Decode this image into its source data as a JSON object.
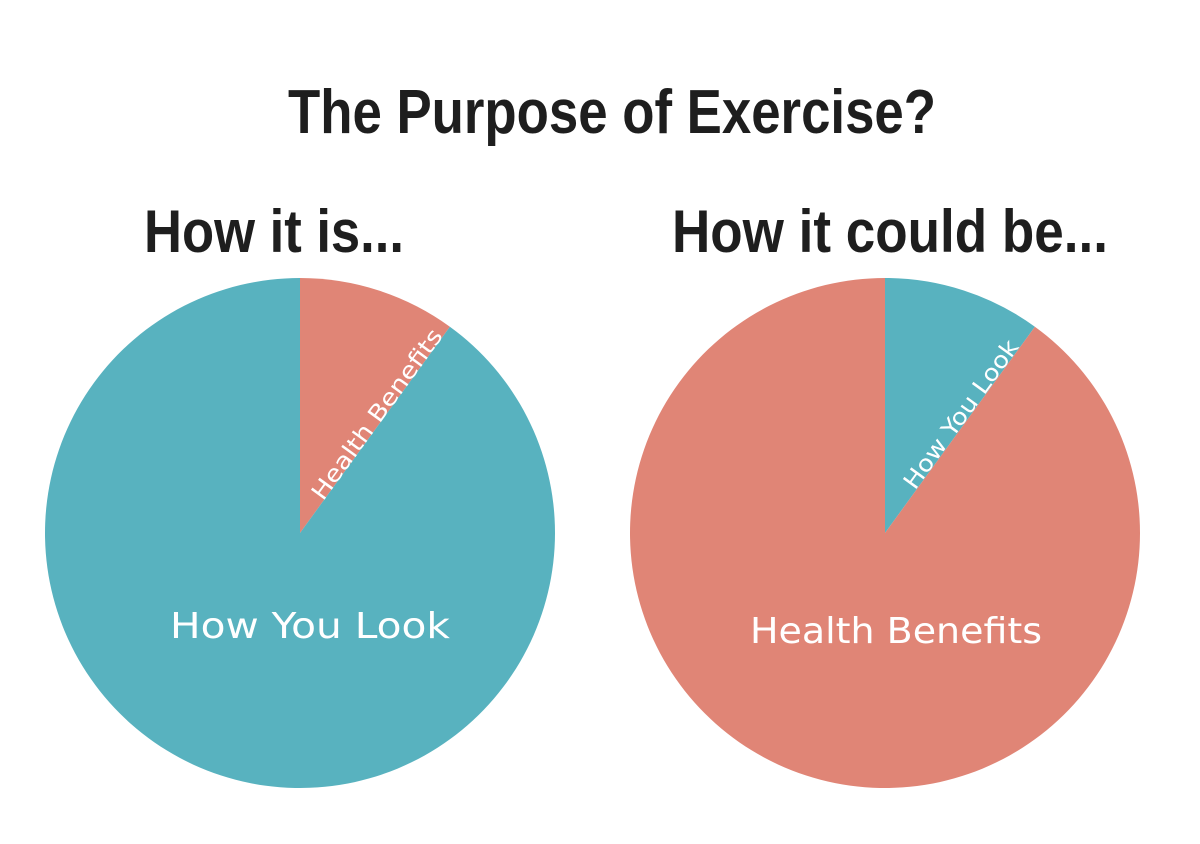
{
  "title": "The Purpose of Exercise?",
  "colors": {
    "how_you_look": "#58b2bf",
    "health_benefits": "#e08576",
    "text": "#1e1e1e",
    "label": "#ffffff"
  },
  "chart_data": [
    {
      "type": "pie",
      "title": "How it is...",
      "slices": [
        {
          "label": "Health Benefits",
          "value": 10,
          "color": "#e08576"
        },
        {
          "label": "How You Look",
          "value": 90,
          "color": "#58b2bf"
        }
      ]
    },
    {
      "type": "pie",
      "title": "How it could be...",
      "slices": [
        {
          "label": "How You Look",
          "value": 10,
          "color": "#58b2bf"
        },
        {
          "label": "Health Benefits",
          "value": 90,
          "color": "#e08576"
        }
      ]
    }
  ]
}
